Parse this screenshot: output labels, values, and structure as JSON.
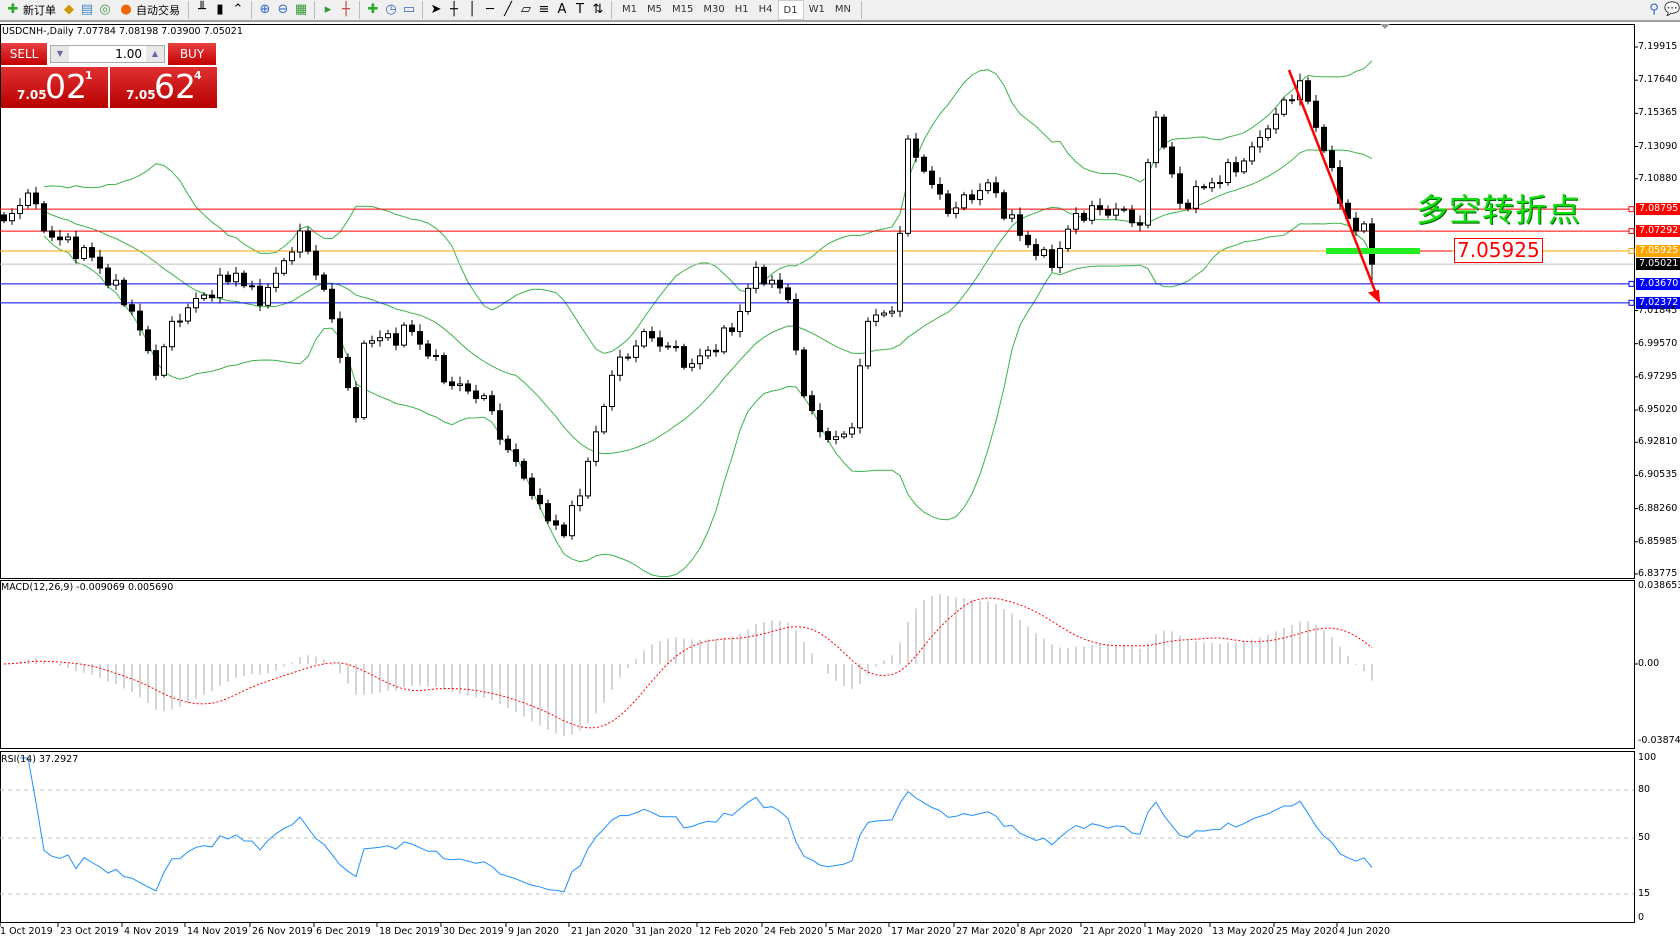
{
  "toolbar": {
    "new_order": "新订单",
    "auto_trading": "自动交易",
    "timeframes": [
      "M1",
      "M5",
      "M15",
      "M30",
      "H1",
      "H4",
      "D1",
      "W1",
      "MN"
    ],
    "active_timeframe": "D1"
  },
  "chart": {
    "title": "USDCNH-,Daily  7.07784 7.08198 7.03900 7.05021",
    "symbol": "USDCNH-",
    "period": "Daily",
    "ohlc_last": {
      "open": 7.07784,
      "high": 7.08198,
      "low": 7.039,
      "close": 7.05021
    }
  },
  "oneclick": {
    "sell": "SELL",
    "buy": "BUY",
    "lot": "1.00",
    "bid_small": "7.05",
    "bid_big": "02",
    "bid_sup": "1",
    "ask_small": "7.05",
    "ask_big": "62",
    "ask_sup": "4"
  },
  "price_axis": [
    "7.19915",
    "7.17640",
    "7.15365",
    "7.13090",
    "7.10880",
    "7.01845",
    "6.99570",
    "6.97295",
    "6.95020",
    "6.92810",
    "6.90535",
    "6.88260",
    "6.85985",
    "6.83775"
  ],
  "hlines": [
    {
      "price": "7.08795",
      "color": "#ff0000"
    },
    {
      "price": "7.07292",
      "color": "#ff0000"
    },
    {
      "price": "7.05925",
      "color": "#ffa500"
    },
    {
      "price": "7.05021",
      "color": "#000000"
    },
    {
      "price": "7.03670",
      "color": "#0000ff"
    },
    {
      "price": "7.02372",
      "color": "#0000ff"
    }
  ],
  "annotation": {
    "text": "多空转折点",
    "price_label": "7.05925",
    "text_color": "#11dd11",
    "arrow_color": "#ff0000"
  },
  "macd": {
    "label": "MACD(12,26,9) -0.009069 0.005690",
    "max": "0.038653",
    "zero": "0.00",
    "min": "-0.038745"
  },
  "rsi": {
    "label": "RSI(14) 37.2927",
    "levels": [
      "100",
      "80",
      "50",
      "15",
      "0"
    ]
  },
  "dates": [
    "1 Oct 2019",
    "23 Oct 2019",
    "4 Nov 2019",
    "14 Nov 2019",
    "26 Nov 2019",
    "6 Dec 2019",
    "18 Dec 2019",
    "30 Dec 2019",
    "9 Jan 2020",
    "21 Jan 2020",
    "31 Jan 2020",
    "12 Feb 2020",
    "24 Feb 2020",
    "5 Mar 2020",
    "17 Mar 2020",
    "27 Mar 2020",
    "8 Apr 2020",
    "21 Apr 2020",
    "1 May 2020",
    "13 May 2020",
    "25 May 2020",
    "4 Jun 2020"
  ],
  "chart_data": {
    "type": "candlestick",
    "ylim": [
      6.83775,
      7.19915
    ],
    "close_keypoints": [
      [
        0,
        7.08
      ],
      [
        1,
        7.085
      ],
      [
        3,
        7.099
      ],
      [
        5,
        7.073
      ],
      [
        11,
        7.055
      ],
      [
        16,
        7.018
      ],
      [
        19,
        6.974
      ],
      [
        21,
        7.011
      ],
      [
        25,
        7.029
      ],
      [
        29,
        7.044
      ],
      [
        32,
        7.022
      ],
      [
        37,
        7.073
      ],
      [
        40,
        7.033
      ],
      [
        44,
        6.945
      ],
      [
        45,
        6.996
      ],
      [
        51,
        7.004
      ],
      [
        56,
        6.967
      ],
      [
        60,
        6.96
      ],
      [
        63,
        6.923
      ],
      [
        67,
        6.886
      ],
      [
        70,
        6.864
      ],
      [
        73,
        6.915
      ],
      [
        76,
        6.974
      ],
      [
        80,
        7.004
      ],
      [
        86,
        6.982
      ],
      [
        91,
        7.004
      ],
      [
        94,
        7.048
      ],
      [
        98,
        7.026
      ],
      [
        100,
        6.96
      ],
      [
        103,
        6.93
      ],
      [
        106,
        6.938
      ],
      [
        108,
        7.011
      ],
      [
        111,
        7.018
      ],
      [
        113,
        7.136
      ],
      [
        115,
        7.114
      ],
      [
        118,
        7.085
      ],
      [
        123,
        7.106
      ],
      [
        127,
        7.07
      ],
      [
        131,
        7.048
      ],
      [
        134,
        7.085
      ],
      [
        139,
        7.088
      ],
      [
        142,
        7.077
      ],
      [
        144,
        7.151
      ],
      [
        147,
        7.092
      ],
      [
        151,
        7.106
      ],
      [
        155,
        7.121
      ],
      [
        158,
        7.143
      ],
      [
        162,
        7.176
      ],
      [
        165,
        7.128
      ],
      [
        167,
        7.092
      ],
      [
        169,
        7.073
      ],
      [
        170,
        7.07784
      ],
      [
        171,
        7.05021
      ]
    ],
    "indicators": [
      "Bollinger Bands(20,2)",
      "MACD(12,26,9)",
      "RSI(14)"
    ],
    "colors": {
      "bands": "#3cb44b",
      "macd_hist": "#c0c0c0",
      "macd_signal": "#ff0000",
      "rsi": "#1e90ff"
    }
  }
}
